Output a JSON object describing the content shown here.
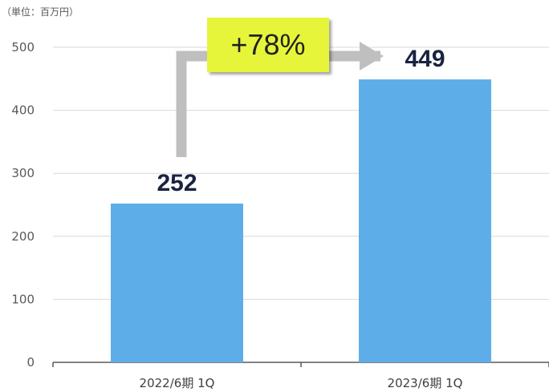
{
  "unit_label": "（単位：百万円）",
  "growth_label": "+78%",
  "colors": {
    "bar": "#5daee8",
    "arrow": "#bfbfbf",
    "badge": "#e6f53a",
    "value_text": "#1a2340"
  },
  "chart_data": {
    "type": "bar",
    "categories": [
      "2022/6期 1Q",
      "2023/6期 1Q"
    ],
    "values": [
      252,
      449
    ],
    "data_labels": [
      "252",
      "449"
    ],
    "y_ticks": [
      0,
      100,
      200,
      300,
      400,
      500
    ],
    "ylim": [
      0,
      500
    ],
    "grid": true,
    "title": "",
    "xlabel": "",
    "ylabel": ""
  }
}
